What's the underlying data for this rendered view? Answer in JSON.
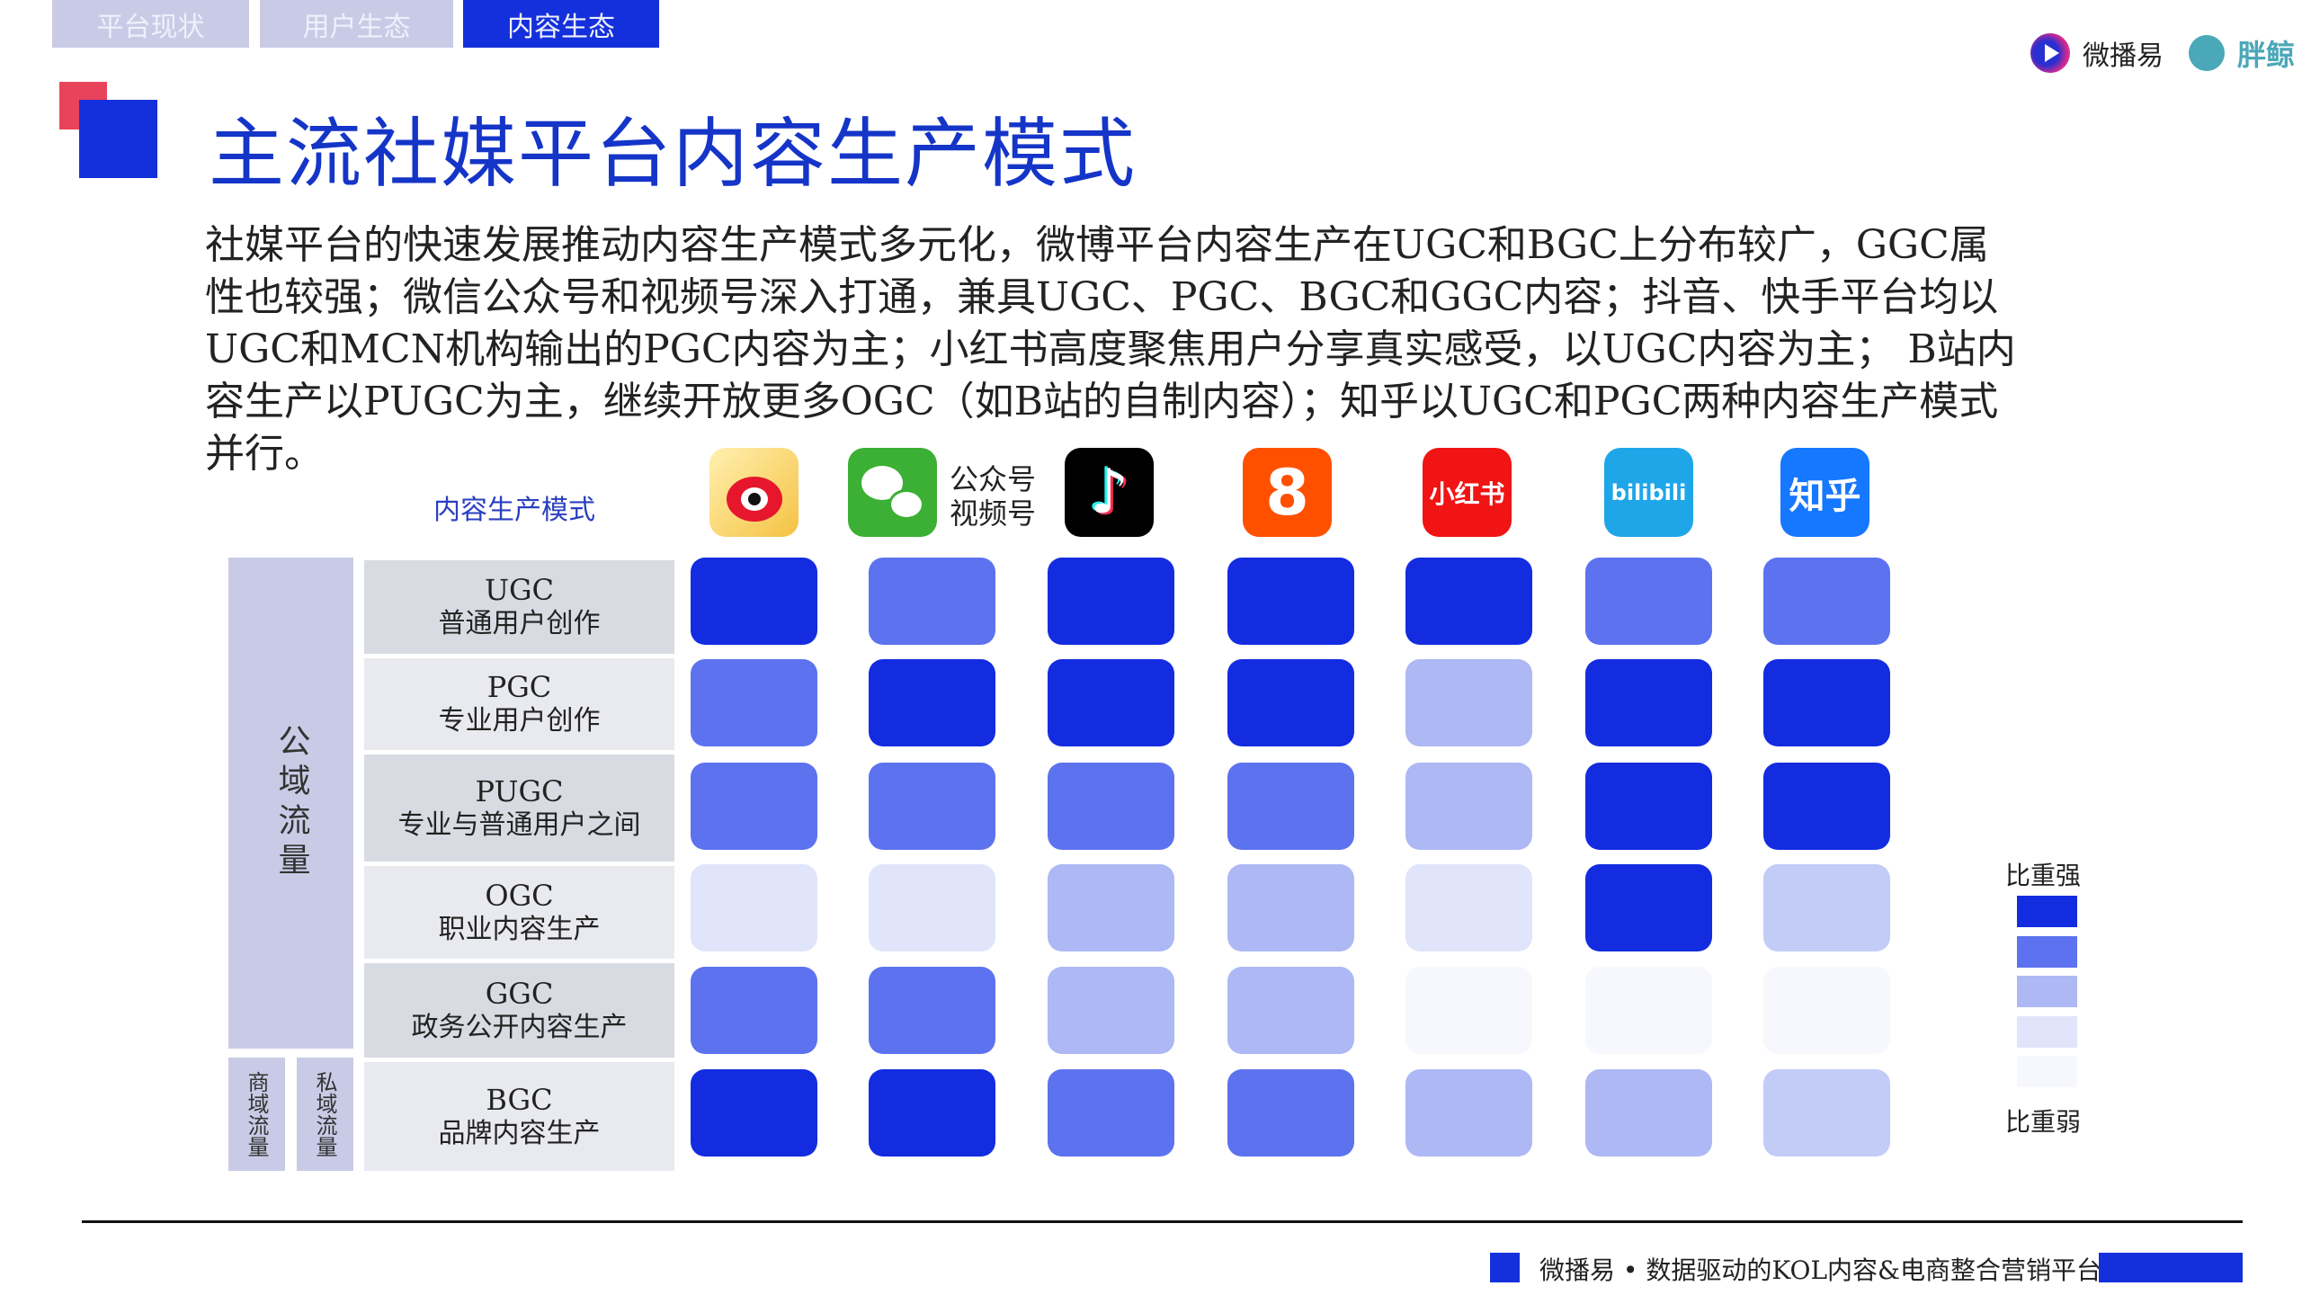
{
  "tabs": [
    {
      "label": "平台现状",
      "active": false
    },
    {
      "label": "用户生态",
      "active": false
    },
    {
      "label": "内容生态",
      "active": true
    }
  ],
  "brand": {
    "logo1_text": "微播易",
    "logo2_text": "胖鲸"
  },
  "title": "主流社媒平台内容生产模式",
  "body_lines": [
    "社媒平台的快速发展推动内容生产模式多元化，微博平台内容生产在UGC和BGC上分布较广，GGC属",
    "性也较强；微信公众号和视频号深入打通，兼具UGC、PGC、BGC和GGC内容；抖音、快手平台均以",
    "UGC和MCN机构输出的PGC内容为主；小红书高度聚焦用户分享真实感受，以UGC内容为主； B站内",
    "容生产以PUGC为主，继续开放更多OGC（如B站的自制内容）；知乎以UGC和PGC两种内容生产模式",
    "并行。"
  ],
  "matrix": {
    "header_label": "内容生产模式",
    "traffic_groups": [
      {
        "label": "公域流量"
      },
      {
        "label": "商域流量"
      },
      {
        "label": "私域流量"
      }
    ],
    "platforms": [
      {
        "name": "weibo",
        "icon": "weibo-icon",
        "color": "#f5c242"
      },
      {
        "name": "wechat",
        "icon": "wechat-icon",
        "color": "#3bb034",
        "caption": [
          "公众号",
          "视频号"
        ]
      },
      {
        "name": "douyin",
        "icon": "douyin-icon",
        "color": "#000000"
      },
      {
        "name": "kuaishou",
        "icon": "kuaishou-icon",
        "color": "#ff5000"
      },
      {
        "name": "xiaohongshu",
        "icon": "xiaohongshu-icon",
        "color": "#f01414",
        "logo_text": "小红书"
      },
      {
        "name": "bilibili",
        "icon": "bilibili-icon",
        "color": "#1fa6e8",
        "logo_text": "bilibili"
      },
      {
        "name": "zhihu",
        "icon": "zhihu-icon",
        "color": "#1677ff",
        "logo_text": "知乎"
      }
    ],
    "rows": [
      {
        "code": "UGC",
        "desc": "普通用户创作",
        "levels": [
          5,
          4,
          5,
          5,
          5,
          4,
          4
        ]
      },
      {
        "code": "PGC",
        "desc": "专业用户创作",
        "levels": [
          4,
          5,
          5,
          5,
          3,
          5,
          5
        ]
      },
      {
        "code": "PUGC",
        "desc": "专业与普通用户之间",
        "levels": [
          4,
          4,
          4,
          4,
          3,
          5,
          5
        ]
      },
      {
        "code": "OGC",
        "desc": "职业内容生产",
        "levels": [
          2,
          2,
          3,
          3,
          2,
          5,
          2.5
        ]
      },
      {
        "code": "GGC",
        "desc": "政务公开内容生产",
        "levels": [
          4,
          4,
          3,
          3,
          1,
          1,
          1
        ]
      },
      {
        "code": "BGC",
        "desc": "品牌内容生产",
        "levels": [
          5,
          5,
          4,
          4,
          3,
          3,
          2.5
        ]
      }
    ],
    "level_colors": {
      "5": "#132ce0",
      "4": "#5d72ef",
      "3": "#adb8f4",
      "2.5": "#c3cbf7",
      "2": "#e0e5fc",
      "1": "#f7f8fe"
    }
  },
  "legend": {
    "strong_label": "比重强",
    "weak_label": "比重弱",
    "levels": [
      5,
      4,
      3,
      2,
      1
    ]
  },
  "footer": {
    "text": "微播易 • 数据驱动的KOL内容&电商整合营销平台",
    "accent": "#1430dc"
  }
}
